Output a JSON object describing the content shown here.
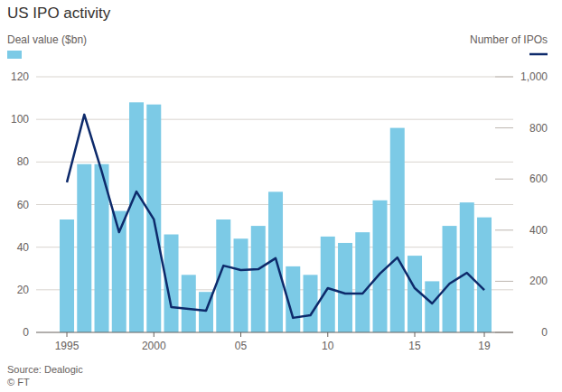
{
  "chart_data": {
    "type": "bar",
    "title": "US IPO activity",
    "y_label": "Deal value ($bn)",
    "y2_label": "Number of IPOs",
    "source": "Source: Dealogic",
    "credit": "© FT",
    "categories": [
      "1995",
      null,
      null,
      null,
      null,
      "2000",
      null,
      null,
      null,
      null,
      "05",
      null,
      null,
      null,
      null,
      "10",
      null,
      null,
      null,
      null,
      "15",
      null,
      null,
      null,
      "19"
    ],
    "series": [
      {
        "name": "Deal value ($bn)",
        "type": "bar",
        "color": "#7ccae6",
        "values": [
          53,
          79,
          79,
          57,
          108,
          107,
          46,
          27,
          19,
          53,
          44,
          50,
          66,
          31,
          27,
          45,
          42,
          47,
          62,
          96,
          36,
          24,
          50,
          61,
          54
        ]
      },
      {
        "name": "Number of IPOs",
        "type": "line",
        "color": "#0d2a6b",
        "axis": "y2",
        "values": [
          587,
          852,
          630,
          392,
          551,
          442,
          99,
          92,
          85,
          261,
          244,
          247,
          290,
          57,
          67,
          173,
          152,
          152,
          230,
          293,
          173,
          113,
          191,
          233,
          166
        ]
      }
    ],
    "ylim": [
      0,
      120
    ],
    "yticks": [
      0,
      20,
      40,
      60,
      80,
      100,
      120
    ],
    "y2lim": [
      0,
      1000
    ],
    "y2ticks": [
      0,
      200,
      400,
      600,
      800,
      {
        "value": 1000,
        "label": "1,000"
      }
    ],
    "grid": true,
    "legend": "top"
  }
}
